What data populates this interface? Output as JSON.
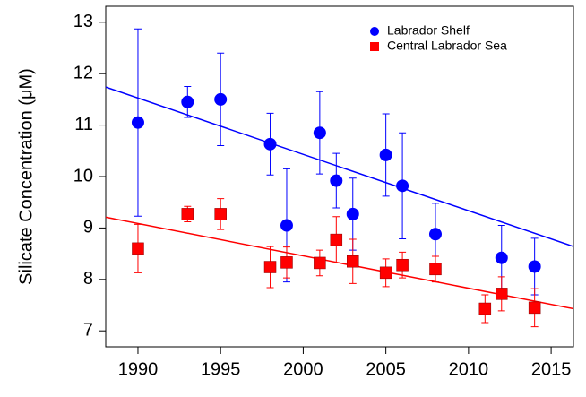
{
  "chart_data": {
    "type": "scatter",
    "y_label": "Silicate Concentration (μM)",
    "xlim": [
      1988.05,
      2016.35
    ],
    "ylim": [
      6.69,
      13.31
    ],
    "xticks": [
      1990,
      1995,
      2000,
      2005,
      2010,
      2015
    ],
    "yticks": [
      7,
      8,
      9,
      10,
      11,
      12,
      13
    ],
    "legend": "upper right",
    "series": [
      {
        "name": "Labrador Shelf",
        "color": "#0000ff",
        "marker": "circle",
        "x": [
          1990,
          1993,
          1995,
          1998,
          1999,
          2001,
          2002,
          2003,
          2005,
          2006,
          2008,
          2012,
          2014
        ],
        "values": [
          11.05,
          11.45,
          11.5,
          10.63,
          9.05,
          10.85,
          9.92,
          9.27,
          10.42,
          9.82,
          8.88,
          8.42,
          8.25
        ],
        "errors": [
          1.82,
          0.3,
          0.9,
          0.6,
          1.1,
          0.8,
          0.53,
          0.7,
          0.8,
          1.03,
          0.6,
          0.63,
          0.55
        ]
      },
      {
        "name": "Central Labrador Sea",
        "color": "#ff0000",
        "marker": "square",
        "x": [
          1990,
          1993,
          1995,
          1998,
          1999,
          2001,
          2002,
          2003,
          2005,
          2006,
          2008,
          2011,
          2012,
          2014
        ],
        "values": [
          8.6,
          9.27,
          9.27,
          8.24,
          8.33,
          8.32,
          8.77,
          8.35,
          8.13,
          8.28,
          8.2,
          7.43,
          7.72,
          7.45
        ],
        "errors": [
          0.47,
          0.15,
          0.3,
          0.4,
          0.3,
          0.25,
          0.45,
          0.43,
          0.27,
          0.25,
          0.25,
          0.27,
          0.33,
          0.37
        ]
      }
    ],
    "trend_lines": [
      {
        "color": "#0000ff",
        "x": [
          1988.05,
          2016.35
        ],
        "values": [
          11.74,
          8.64
        ]
      },
      {
        "color": "#ff0000",
        "x": [
          1988.05,
          2016.35
        ],
        "values": [
          9.21,
          7.43
        ]
      }
    ]
  }
}
